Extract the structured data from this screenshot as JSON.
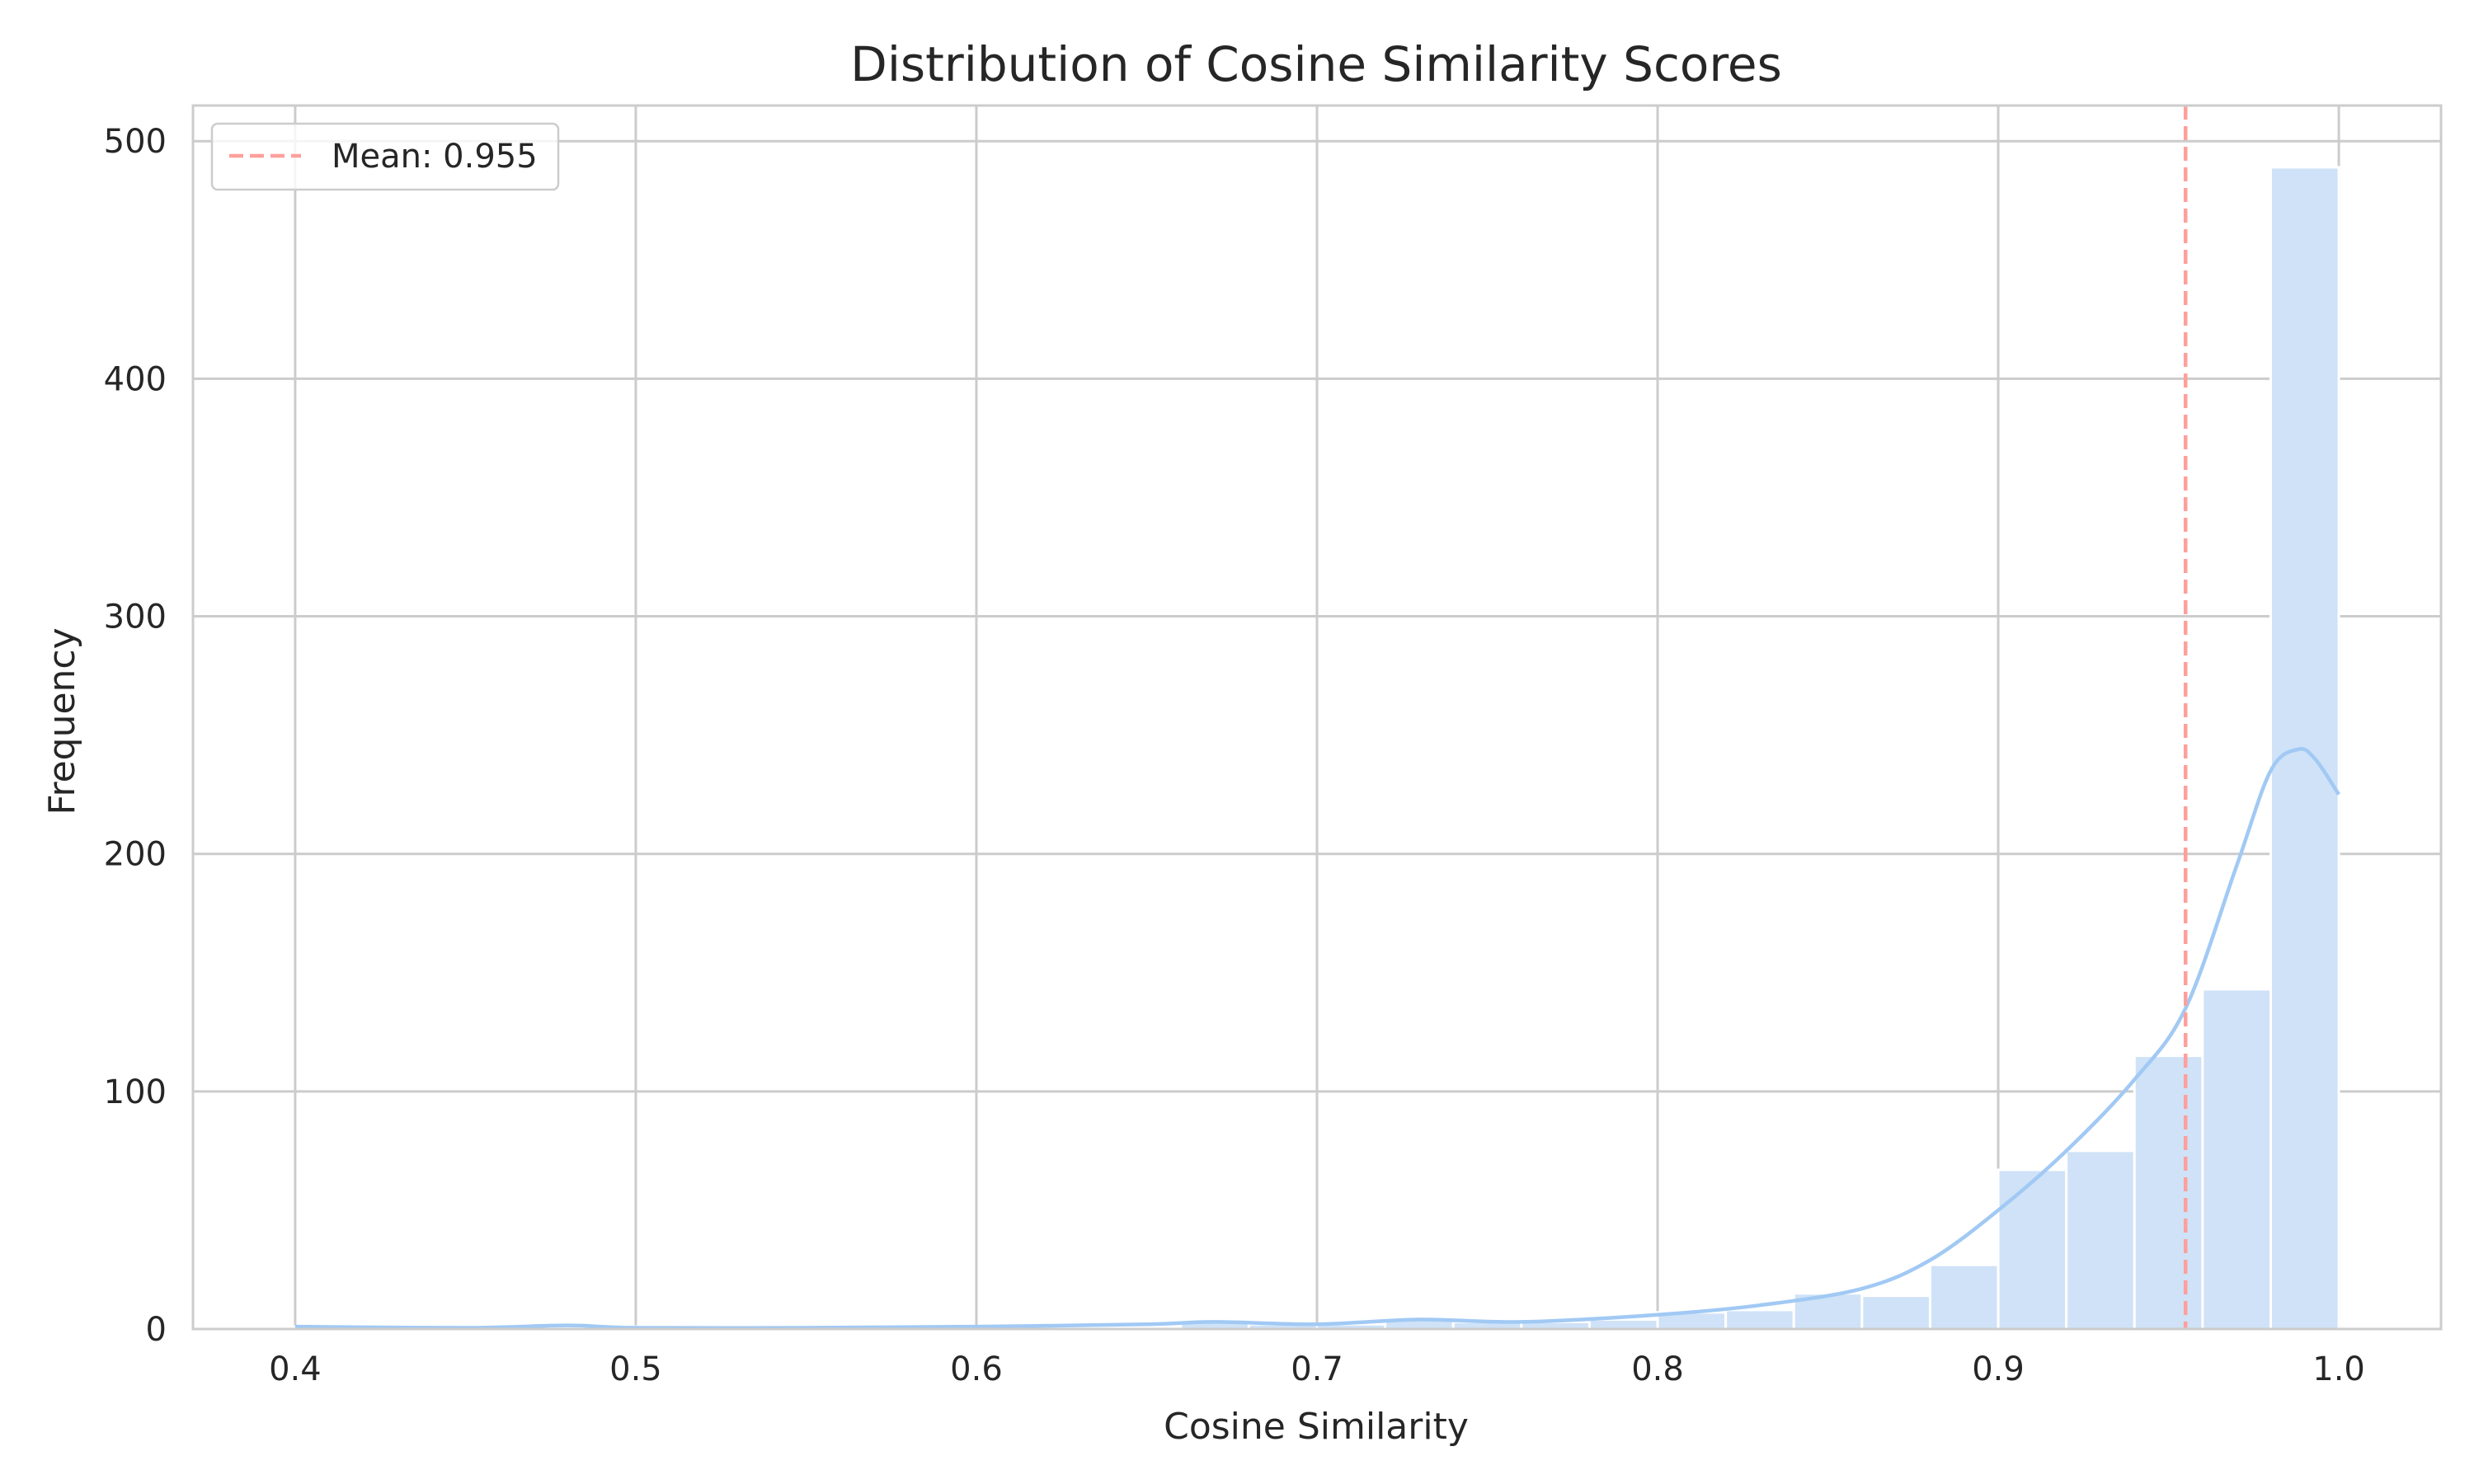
{
  "chart_data": {
    "type": "histogram",
    "title": "Distribution of Cosine Similarity Scores",
    "xlabel": "Cosine Similarity",
    "ylabel": "Frequency",
    "xlim": [
      0.37,
      1.03
    ],
    "ylim": [
      0,
      515
    ],
    "x_ticks": [
      0.4,
      0.5,
      0.6,
      0.7,
      0.8,
      0.9,
      1.0
    ],
    "x_tick_labels": [
      "0.4",
      "0.5",
      "0.6",
      "0.7",
      "0.8",
      "0.9",
      "1.0"
    ],
    "y_ticks": [
      0,
      100,
      200,
      300,
      400,
      500
    ],
    "y_tick_labels": [
      "0",
      "100",
      "200",
      "300",
      "400",
      "500"
    ],
    "grid": true,
    "bin_width": 0.02,
    "bins": [
      {
        "x0": 0.4,
        "x1": 0.42,
        "count": 1
      },
      {
        "x0": 0.42,
        "x1": 0.44,
        "count": 0
      },
      {
        "x0": 0.44,
        "x1": 0.46,
        "count": 0
      },
      {
        "x0": 0.46,
        "x1": 0.48,
        "count": 1
      },
      {
        "x0": 0.48,
        "x1": 0.5,
        "count": 1
      },
      {
        "x0": 0.5,
        "x1": 0.52,
        "count": 0
      },
      {
        "x0": 0.52,
        "x1": 0.54,
        "count": 0
      },
      {
        "x0": 0.54,
        "x1": 0.56,
        "count": 0
      },
      {
        "x0": 0.56,
        "x1": 0.58,
        "count": 0
      },
      {
        "x0": 0.58,
        "x1": 0.6,
        "count": 1
      },
      {
        "x0": 0.6,
        "x1": 0.62,
        "count": 1
      },
      {
        "x0": 0.62,
        "x1": 0.64,
        "count": 1
      },
      {
        "x0": 0.64,
        "x1": 0.66,
        "count": 1
      },
      {
        "x0": 0.66,
        "x1": 0.68,
        "count": 3
      },
      {
        "x0": 0.68,
        "x1": 0.7,
        "count": 2
      },
      {
        "x0": 0.7,
        "x1": 0.72,
        "count": 2
      },
      {
        "x0": 0.72,
        "x1": 0.74,
        "count": 4
      },
      {
        "x0": 0.74,
        "x1": 0.76,
        "count": 3
      },
      {
        "x0": 0.76,
        "x1": 0.78,
        "count": 3
      },
      {
        "x0": 0.78,
        "x1": 0.8,
        "count": 4
      },
      {
        "x0": 0.8,
        "x1": 0.82,
        "count": 7
      },
      {
        "x0": 0.82,
        "x1": 0.84,
        "count": 8
      },
      {
        "x0": 0.84,
        "x1": 0.86,
        "count": 15
      },
      {
        "x0": 0.86,
        "x1": 0.88,
        "count": 14
      },
      {
        "x0": 0.88,
        "x1": 0.9,
        "count": 27
      },
      {
        "x0": 0.9,
        "x1": 0.92,
        "count": 67
      },
      {
        "x0": 0.92,
        "x1": 0.94,
        "count": 75
      },
      {
        "x0": 0.94,
        "x1": 0.96,
        "count": 115
      },
      {
        "x0": 0.96,
        "x1": 0.98,
        "count": 143
      },
      {
        "x0": 0.98,
        "x1": 1.0,
        "count": 489
      }
    ],
    "kde": {
      "x": [
        0.4,
        0.45,
        0.48,
        0.5,
        0.55,
        0.6,
        0.65,
        0.67,
        0.7,
        0.73,
        0.76,
        0.8,
        0.83,
        0.86,
        0.88,
        0.9,
        0.92,
        0.94,
        0.955,
        0.97,
        0.98,
        0.988,
        0.993,
        1.0
      ],
      "y": [
        1,
        0.5,
        1.5,
        0.5,
        0.5,
        1,
        2,
        3,
        2,
        4,
        3,
        6,
        10,
        17,
        29,
        50,
        75,
        105,
        135,
        195,
        235,
        244,
        240,
        225
      ]
    },
    "mean_line": {
      "x": 0.955,
      "label": "Mean: 0.955"
    },
    "legend": {
      "position": "top-left",
      "entries": [
        "Mean: 0.955"
      ]
    },
    "colors": {
      "bar_fill": "#cfe2f7",
      "kde_line": "#a1c9f4",
      "mean_line": "#ff9f9b",
      "grid": "#cccccc",
      "spine": "#cccccc",
      "text": "#262626"
    }
  }
}
